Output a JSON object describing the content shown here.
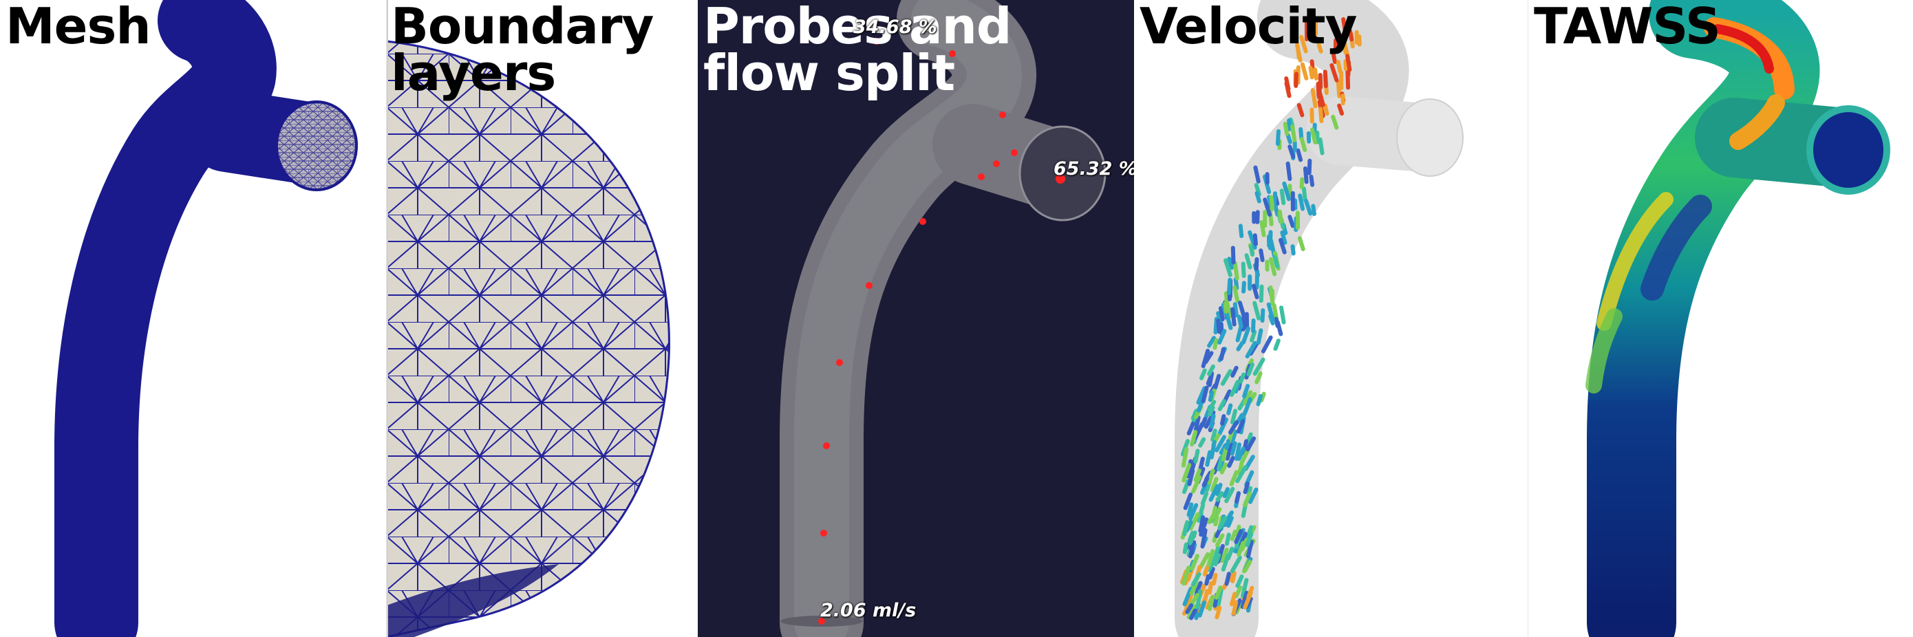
{
  "panels": {
    "mesh": {
      "title": "Mesh",
      "color": "#1a1a8c"
    },
    "boundary": {
      "title": "Boundary layers",
      "title_line1": "Boundary",
      "title_line2": "layers",
      "fill": "#dcd7cd",
      "edge": "#20209a"
    },
    "probes": {
      "title": "Probes and flow split",
      "title_line1": "Probes and",
      "title_line2": "flow split",
      "background": "#1c1b36",
      "probe_color": "#ff2222",
      "labels": {
        "top_outlet": "34.68 %",
        "side_outlet": "65.32 %",
        "inlet": "2.06 ml/s"
      }
    },
    "velocity": {
      "title": "Velocity"
    },
    "tawss": {
      "title": "TAWSS"
    }
  }
}
